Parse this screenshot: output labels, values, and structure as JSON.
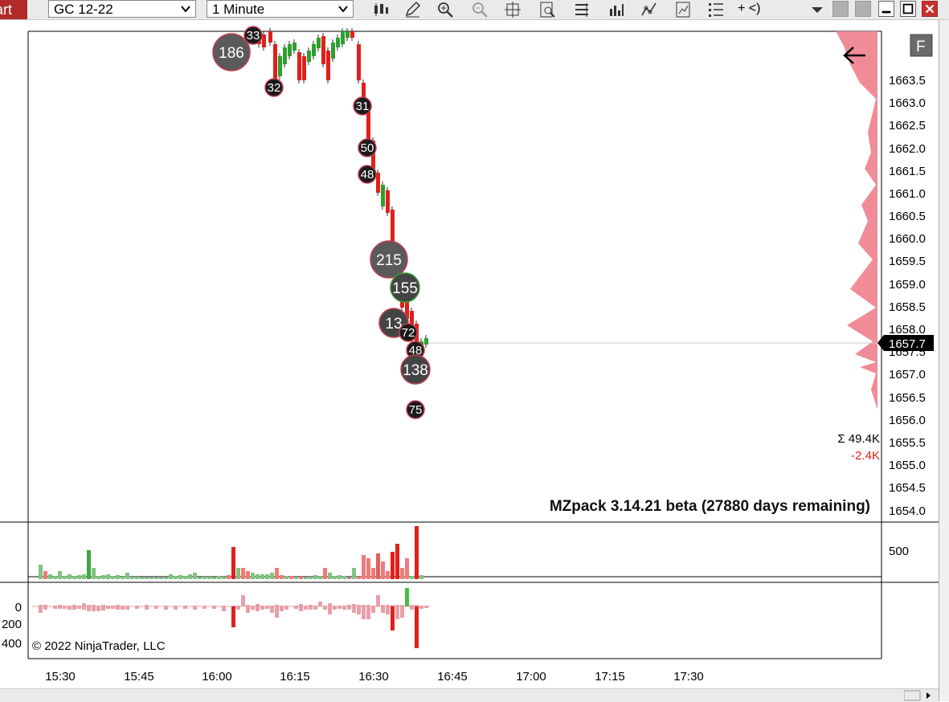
{
  "toolbar": {
    "chart_tab_label": "art",
    "instrument": "GC 12-22",
    "interval": "1 Minute",
    "extra_label": "+ <)",
    "icons": [
      "bar-type-icon",
      "pencil-icon",
      "zoom-in-icon",
      "zoom-out-icon",
      "crosshair-icon",
      "data-box-icon",
      "properties-icon",
      "strategies-icon",
      "indicators-icon",
      "hot-keys-icon",
      "chart-trader-icon",
      "menu-list-icon"
    ]
  },
  "chart": {
    "flatten_label": "F",
    "current_price_label": "1657.7",
    "price_ticks": [
      "1663.5",
      "1663.0",
      "1662.5",
      "1662.0",
      "1661.5",
      "1661.0",
      "1660.5",
      "1660.0",
      "1659.5",
      "1659.0",
      "1658.5",
      "1658.0",
      "1657.5",
      "1657.0",
      "1656.5",
      "1656.0",
      "1655.5",
      "1655.0",
      "1654.5",
      "1654.0"
    ],
    "sum_label": "Σ 49.4K",
    "delta_label": "-2.4K",
    "watermark": "MZpack 3.14.21 beta  (27880 days remaining)",
    "volume_tick": "500",
    "delta_ticks": [
      "0",
      "200",
      "400"
    ],
    "copyright": "© 2022 NinjaTrader, LLC",
    "time_ticks": [
      "15:30",
      "15:45",
      "16:00",
      "16:15",
      "16:30",
      "16:45",
      "17:00",
      "17:15",
      "17:30"
    ],
    "bubbles": [
      {
        "label": "33",
        "size": "small"
      },
      {
        "label": "186",
        "size": "large"
      },
      {
        "label": "32",
        "size": "small"
      },
      {
        "label": "31",
        "size": "small"
      },
      {
        "label": "50",
        "size": "small"
      },
      {
        "label": "48",
        "size": "small"
      },
      {
        "label": "215",
        "size": "large"
      },
      {
        "label": "155",
        "size": "medium"
      },
      {
        "label": "13",
        "size": "medium"
      },
      {
        "label": "72",
        "size": "small"
      },
      {
        "label": "48",
        "size": "small"
      },
      {
        "label": "138",
        "size": "medium"
      },
      {
        "label": "75",
        "size": "small"
      }
    ],
    "colors": {
      "up": "#2e9e2e",
      "down": "#e0201c",
      "bubble_dark": "#1a1a1a",
      "bubble_gray": "#5a5a5a",
      "profile": "#f08c98",
      "price_tag": "#000000"
    }
  }
}
